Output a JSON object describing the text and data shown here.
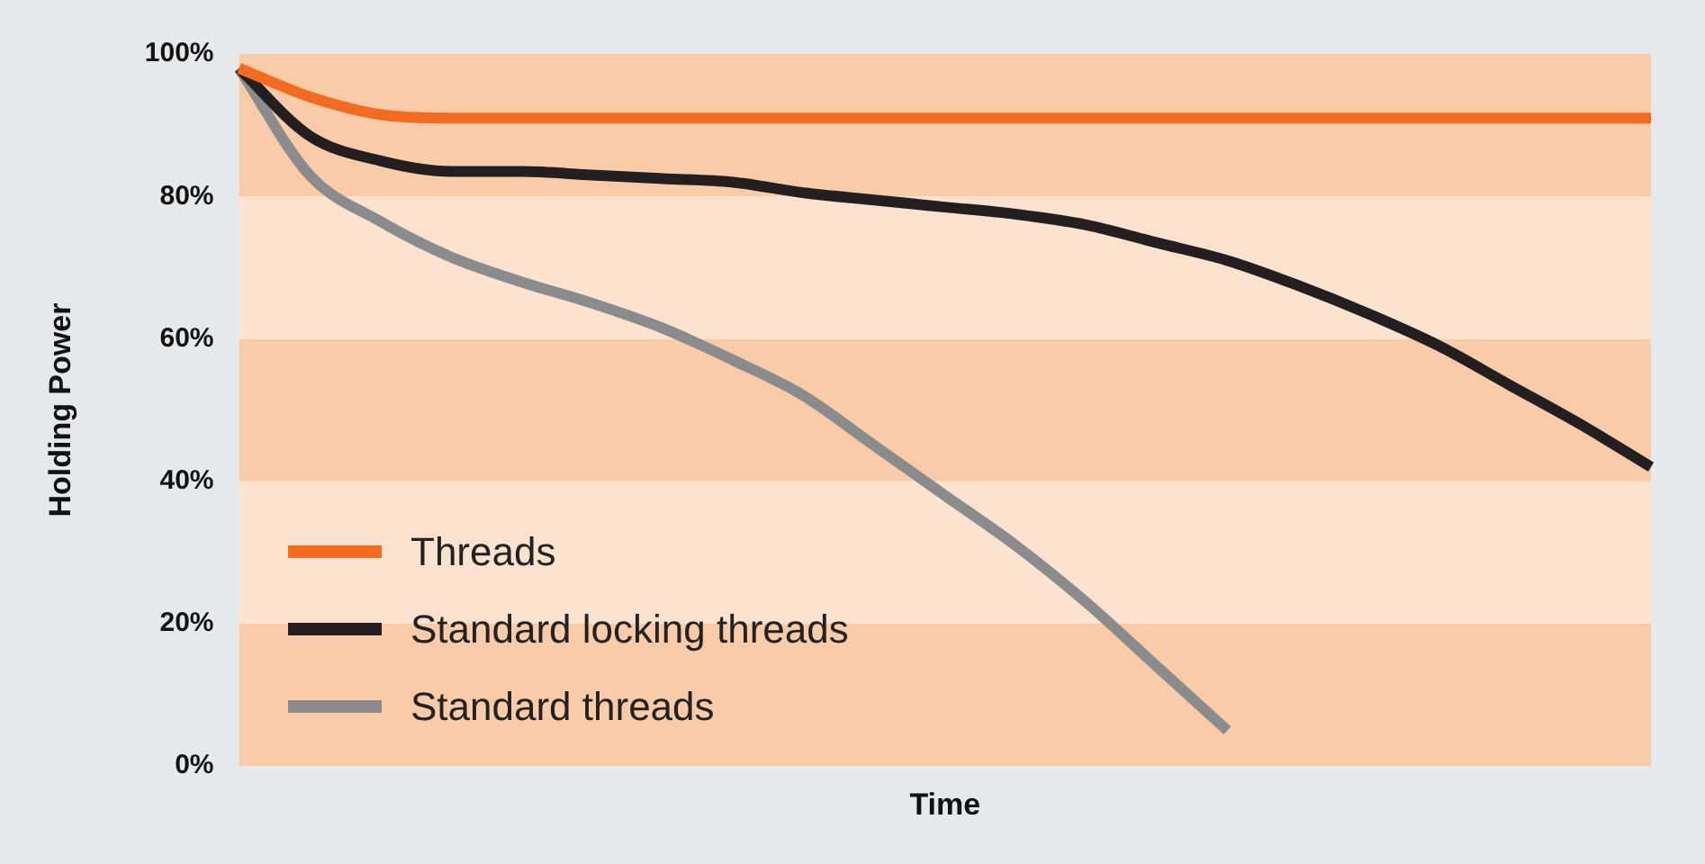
{
  "chart_data": {
    "type": "line",
    "xlabel": "Time",
    "ylabel": "Holding Power",
    "categories": [
      null,
      null,
      null,
      null,
      null,
      null,
      null,
      null,
      null,
      null,
      null,
      null,
      null,
      null,
      null,
      null,
      null,
      null,
      null,
      null,
      null
    ],
    "series": [
      {
        "name": "Threads",
        "color": "#f26b21",
        "values": [
          98,
          94,
          91.5,
          91,
          91,
          91,
          91,
          91,
          91,
          91,
          91,
          91,
          91,
          91,
          91,
          91,
          91,
          91,
          91,
          91,
          91
        ]
      },
      {
        "name": "Standard locking threads",
        "color": "#231f20",
        "values": [
          98,
          88.5,
          85,
          83.5,
          83.5,
          83,
          82.5,
          82,
          80.5,
          79.5,
          78.5,
          77.5,
          76,
          73.5,
          71,
          67.5,
          63.5,
          59,
          53.5,
          48,
          42
        ]
      },
      {
        "name": "Standard threads",
        "color": "#8a8b8d",
        "values": [
          98,
          83,
          76.5,
          71.5,
          68,
          65,
          61.5,
          57,
          52,
          45,
          38,
          31,
          23,
          14,
          5,
          null,
          null,
          null,
          null,
          null,
          null
        ]
      }
    ],
    "ylim": [
      0,
      100
    ],
    "yticks": [
      {
        "value": 0,
        "label": "0%"
      },
      {
        "value": 20,
        "label": "20%"
      },
      {
        "value": 40,
        "label": "40%"
      },
      {
        "value": 60,
        "label": "60%"
      },
      {
        "value": 80,
        "label": "80%"
      },
      {
        "value": 100,
        "label": "100%"
      }
    ],
    "tick_labels": "y",
    "grid": false,
    "legend": "bottom left",
    "marker": "none",
    "line_style": "solid",
    "bands": [
      {
        "axis": "y",
        "from": 0,
        "to": 20,
        "color": "#f9cba8"
      },
      {
        "axis": "y",
        "from": 20,
        "to": 40,
        "color": "#fde2d0"
      },
      {
        "axis": "y",
        "from": 40,
        "to": 60,
        "color": "#f9cba8"
      },
      {
        "axis": "y",
        "from": 60,
        "to": 80,
        "color": "#fde2d0"
      },
      {
        "axis": "y",
        "from": 80,
        "to": 100,
        "color": "#f9cba8"
      }
    ]
  }
}
